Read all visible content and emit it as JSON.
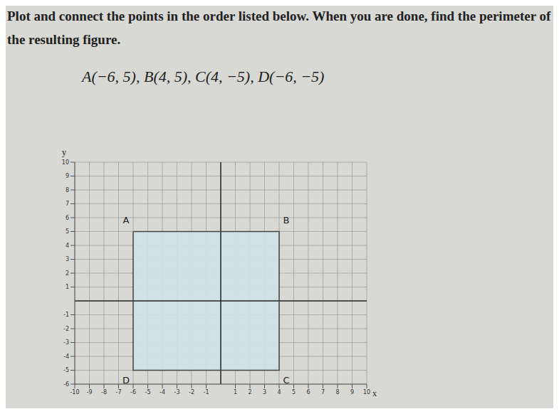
{
  "chart_data": {
    "type": "scatter",
    "title": "Plot and connect the points in the order listed below. When you are done, find the perimeter of the resulting figure.",
    "subtitle": "A(−6, 5), B(4, 5), C(4, −5), D(−6, −5)",
    "x_label": "x",
    "y_label": "y",
    "points": [
      {
        "label": "A",
        "x": -6,
        "y": 5
      },
      {
        "label": "B",
        "x": 4,
        "y": 5
      },
      {
        "label": "C",
        "x": 4,
        "y": -5
      },
      {
        "label": "D",
        "x": -6,
        "y": -5
      }
    ],
    "color": "#cfe2e8",
    "line_style": "solid",
    "marker": "none",
    "xlim": [
      -10,
      10
    ],
    "ylim": [
      -6,
      10
    ],
    "xticks": [
      -10,
      -9,
      -8,
      -7,
      -6,
      -5,
      -4,
      -3,
      -2,
      -1,
      1,
      2,
      3,
      4,
      5,
      6,
      7,
      8,
      9,
      10
    ],
    "yticks": [
      -6,
      -5,
      -4,
      -3,
      -2,
      -1,
      1,
      2,
      3,
      4,
      5,
      6,
      7,
      8,
      9,
      10
    ],
    "grid": true
  }
}
